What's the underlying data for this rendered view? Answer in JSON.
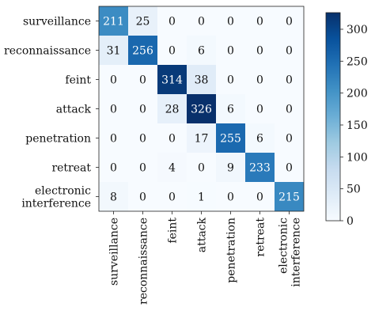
{
  "chart_data": {
    "type": "heatmap",
    "row_labels": [
      [
        "surveillance"
      ],
      [
        "reconnaissance"
      ],
      [
        "feint"
      ],
      [
        "attack"
      ],
      [
        "penetration"
      ],
      [
        "retreat"
      ],
      [
        "electronic",
        "interference"
      ]
    ],
    "col_labels": [
      [
        "surveillance"
      ],
      [
        "reconnaissance"
      ],
      [
        "feint"
      ],
      [
        "attack"
      ],
      [
        "penetration"
      ],
      [
        "retreat"
      ],
      [
        "electronic",
        "interference"
      ]
    ],
    "matrix": [
      [
        211,
        25,
        0,
        0,
        0,
        0,
        0
      ],
      [
        31,
        256,
        0,
        6,
        0,
        0,
        0
      ],
      [
        0,
        0,
        314,
        38,
        0,
        0,
        0
      ],
      [
        0,
        0,
        28,
        326,
        6,
        0,
        0
      ],
      [
        0,
        0,
        0,
        17,
        255,
        6,
        0
      ],
      [
        0,
        0,
        4,
        0,
        9,
        233,
        0
      ],
      [
        8,
        0,
        0,
        1,
        0,
        0,
        215
      ]
    ],
    "colorbar": {
      "min": 0,
      "max": 326,
      "ticks": [
        0,
        50,
        100,
        150,
        200,
        250,
        300
      ]
    },
    "colormap": [
      "#f7fbff",
      "#deebf7",
      "#c6dbef",
      "#9ecae1",
      "#6baed6",
      "#4292c6",
      "#2171b5",
      "#08519c",
      "#08306b"
    ],
    "light_text_color": "#ffffff",
    "dark_text_color": "#111111"
  }
}
